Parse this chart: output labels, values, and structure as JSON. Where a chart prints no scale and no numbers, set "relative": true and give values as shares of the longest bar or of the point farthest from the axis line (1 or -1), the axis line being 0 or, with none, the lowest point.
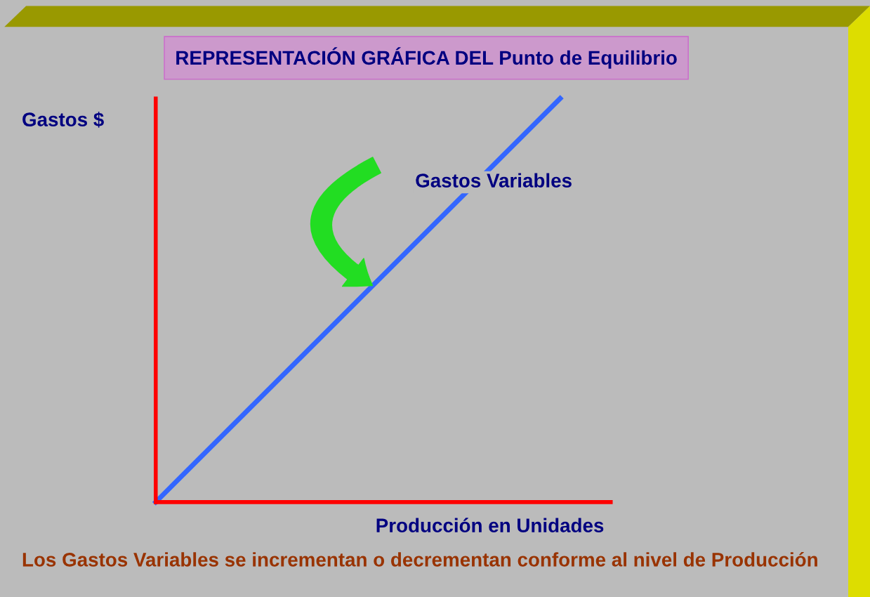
{
  "chart_data": {
    "type": "line",
    "title": "REPRESENTACIÓN GRÁFICA DEL Punto de Equilibrio",
    "xlabel": "Producción en Unidades",
    "ylabel": "Gastos $",
    "relative": true,
    "categories": [
      null,
      null
    ],
    "series": [
      {
        "name": "Gastos Variables",
        "color": "#3366ff",
        "values": [
          0,
          1
        ]
      }
    ],
    "annotations": [
      "Los Gastos Variables se incrementan o decrementan conforme al nivel de Producción"
    ],
    "grid": false,
    "legend": false,
    "marker": "none",
    "line_style": "solid"
  }
}
